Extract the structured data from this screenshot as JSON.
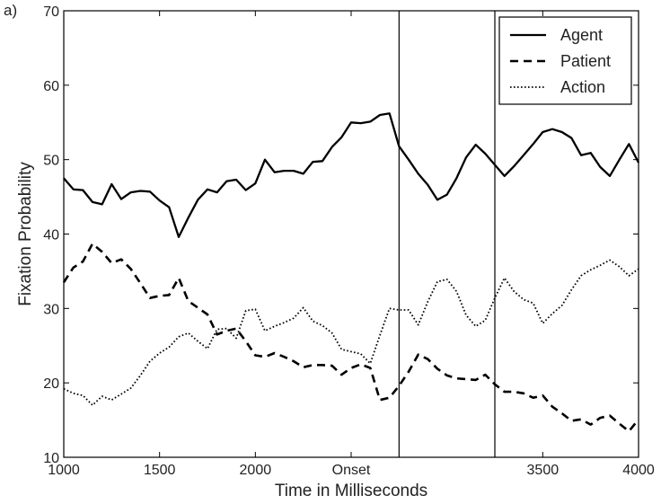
{
  "panel_label": "a)",
  "chart_data": {
    "type": "line",
    "xlabel": "Time in Milliseconds",
    "ylabel": "Fixation Probability",
    "xlim": [
      1000,
      4000
    ],
    "ylim": [
      10,
      70
    ],
    "x_ticks": [
      {
        "value": 1000,
        "label": "1000"
      },
      {
        "value": 1500,
        "label": "1500"
      },
      {
        "value": 2000,
        "label": "2000"
      },
      {
        "value": 2500,
        "label": "Onset"
      },
      {
        "value": 3500,
        "label": "3500"
      },
      {
        "value": 4000,
        "label": "4000"
      }
    ],
    "y_ticks": [
      10,
      20,
      30,
      40,
      50,
      60,
      70
    ],
    "vertical_lines": [
      2750,
      3250
    ],
    "legend_position": "top-right",
    "series": [
      {
        "name": "Agent",
        "style": "solid",
        "points": [
          [
            1000,
            47.5
          ],
          [
            1050,
            46
          ],
          [
            1100,
            45.9
          ],
          [
            1150,
            44.3
          ],
          [
            1200,
            44
          ],
          [
            1250,
            46.7
          ],
          [
            1300,
            44.7
          ],
          [
            1350,
            45.6
          ],
          [
            1400,
            45.8
          ],
          [
            1450,
            45.7
          ],
          [
            1500,
            44.5
          ],
          [
            1550,
            43.6
          ],
          [
            1600,
            39.6
          ],
          [
            1650,
            42.2
          ],
          [
            1700,
            44.6
          ],
          [
            1750,
            46
          ],
          [
            1800,
            45.6
          ],
          [
            1850,
            47.1
          ],
          [
            1900,
            47.3
          ],
          [
            1950,
            45.9
          ],
          [
            2000,
            46.8
          ],
          [
            2050,
            50
          ],
          [
            2100,
            48.3
          ],
          [
            2150,
            48.5
          ],
          [
            2200,
            48.5
          ],
          [
            2250,
            48.1
          ],
          [
            2300,
            49.7
          ],
          [
            2350,
            49.8
          ],
          [
            2400,
            51.7
          ],
          [
            2450,
            53
          ],
          [
            2500,
            55
          ],
          [
            2550,
            54.9
          ],
          [
            2600,
            55.1
          ],
          [
            2650,
            56
          ],
          [
            2700,
            56.2
          ],
          [
            2750,
            51.8
          ],
          [
            2800,
            50
          ],
          [
            2850,
            48.1
          ],
          [
            2900,
            46.6
          ],
          [
            2950,
            44.6
          ],
          [
            3000,
            45.3
          ],
          [
            3050,
            47.5
          ],
          [
            3100,
            50.3
          ],
          [
            3150,
            52
          ],
          [
            3200,
            50.8
          ],
          [
            3250,
            49.3
          ],
          [
            3300,
            47.8
          ],
          [
            3350,
            49.1
          ],
          [
            3400,
            50.6
          ],
          [
            3450,
            52.1
          ],
          [
            3500,
            53.7
          ],
          [
            3550,
            54.1
          ],
          [
            3600,
            53.7
          ],
          [
            3650,
            52.9
          ],
          [
            3700,
            50.6
          ],
          [
            3750,
            50.9
          ],
          [
            3800,
            49
          ],
          [
            3850,
            47.8
          ],
          [
            3900,
            50
          ],
          [
            3950,
            52.1
          ],
          [
            4000,
            49.6
          ]
        ]
      },
      {
        "name": "Patient",
        "style": "dashed",
        "points": [
          [
            1000,
            33.5
          ],
          [
            1050,
            35.5
          ],
          [
            1100,
            36.3
          ],
          [
            1150,
            38.7
          ],
          [
            1200,
            37.6
          ],
          [
            1250,
            36.1
          ],
          [
            1300,
            36.6
          ],
          [
            1350,
            35.3
          ],
          [
            1400,
            33.4
          ],
          [
            1450,
            31.4
          ],
          [
            1500,
            31.7
          ],
          [
            1550,
            31.8
          ],
          [
            1600,
            34.1
          ],
          [
            1650,
            31
          ],
          [
            1700,
            30.1
          ],
          [
            1750,
            29.2
          ],
          [
            1800,
            26.5
          ],
          [
            1850,
            27
          ],
          [
            1900,
            27.3
          ],
          [
            1950,
            25.6
          ],
          [
            2000,
            23.7
          ],
          [
            2050,
            23.5
          ],
          [
            2100,
            24
          ],
          [
            2150,
            23.5
          ],
          [
            2200,
            22.9
          ],
          [
            2250,
            22.1
          ],
          [
            2300,
            22.4
          ],
          [
            2350,
            22.4
          ],
          [
            2400,
            22.3
          ],
          [
            2450,
            21.1
          ],
          [
            2500,
            22
          ],
          [
            2550,
            22.5
          ],
          [
            2600,
            22
          ],
          [
            2650,
            17.7
          ],
          [
            2700,
            18
          ],
          [
            2750,
            19.6
          ],
          [
            2800,
            21.5
          ],
          [
            2850,
            23.8
          ],
          [
            2900,
            23.2
          ],
          [
            2950,
            21.9
          ],
          [
            3000,
            21
          ],
          [
            3050,
            20.6
          ],
          [
            3100,
            20.5
          ],
          [
            3150,
            20.4
          ],
          [
            3200,
            21.1
          ],
          [
            3250,
            19.8
          ],
          [
            3300,
            18.8
          ],
          [
            3350,
            18.8
          ],
          [
            3400,
            18.6
          ],
          [
            3450,
            18
          ],
          [
            3500,
            18.3
          ],
          [
            3550,
            16.8
          ],
          [
            3600,
            15.9
          ],
          [
            3650,
            14.9
          ],
          [
            3700,
            15.1
          ],
          [
            3750,
            14.4
          ],
          [
            3800,
            15.3
          ],
          [
            3850,
            15.6
          ],
          [
            3900,
            14.5
          ],
          [
            3950,
            13.5
          ],
          [
            4000,
            15.1
          ]
        ]
      },
      {
        "name": "Action",
        "style": "dotted",
        "points": [
          [
            1000,
            19.2
          ],
          [
            1050,
            18.6
          ],
          [
            1100,
            18.3
          ],
          [
            1150,
            17
          ],
          [
            1200,
            18.2
          ],
          [
            1250,
            17.7
          ],
          [
            1300,
            18.5
          ],
          [
            1350,
            19.3
          ],
          [
            1400,
            21
          ],
          [
            1450,
            22.9
          ],
          [
            1500,
            24
          ],
          [
            1550,
            24.8
          ],
          [
            1600,
            26.2
          ],
          [
            1650,
            26.7
          ],
          [
            1700,
            25.6
          ],
          [
            1750,
            24.6
          ],
          [
            1800,
            27.2
          ],
          [
            1850,
            27.3
          ],
          [
            1900,
            26
          ],
          [
            1950,
            29.7
          ],
          [
            2000,
            29.9
          ],
          [
            2050,
            27
          ],
          [
            2100,
            27.6
          ],
          [
            2150,
            28.1
          ],
          [
            2200,
            28.7
          ],
          [
            2250,
            30.1
          ],
          [
            2300,
            28.3
          ],
          [
            2350,
            27.7
          ],
          [
            2400,
            26.7
          ],
          [
            2450,
            24.5
          ],
          [
            2500,
            24.2
          ],
          [
            2550,
            23.9
          ],
          [
            2600,
            22.6
          ],
          [
            2650,
            26.4
          ],
          [
            2700,
            30
          ],
          [
            2750,
            29.8
          ],
          [
            2800,
            29.8
          ],
          [
            2850,
            27.8
          ],
          [
            2900,
            30.9
          ],
          [
            2950,
            33.6
          ],
          [
            3000,
            33.9
          ],
          [
            3050,
            32.3
          ],
          [
            3100,
            29.1
          ],
          [
            3150,
            27.6
          ],
          [
            3200,
            28.4
          ],
          [
            3250,
            31.4
          ],
          [
            3300,
            34.1
          ],
          [
            3350,
            32.3
          ],
          [
            3400,
            31.2
          ],
          [
            3450,
            30.7
          ],
          [
            3500,
            28
          ],
          [
            3550,
            29.3
          ],
          [
            3600,
            30.4
          ],
          [
            3650,
            32.5
          ],
          [
            3700,
            34.4
          ],
          [
            3750,
            35.2
          ],
          [
            3800,
            35.8
          ],
          [
            3850,
            36.5
          ],
          [
            3900,
            35.6
          ],
          [
            3950,
            34.4
          ],
          [
            4000,
            35.3
          ]
        ]
      }
    ]
  }
}
